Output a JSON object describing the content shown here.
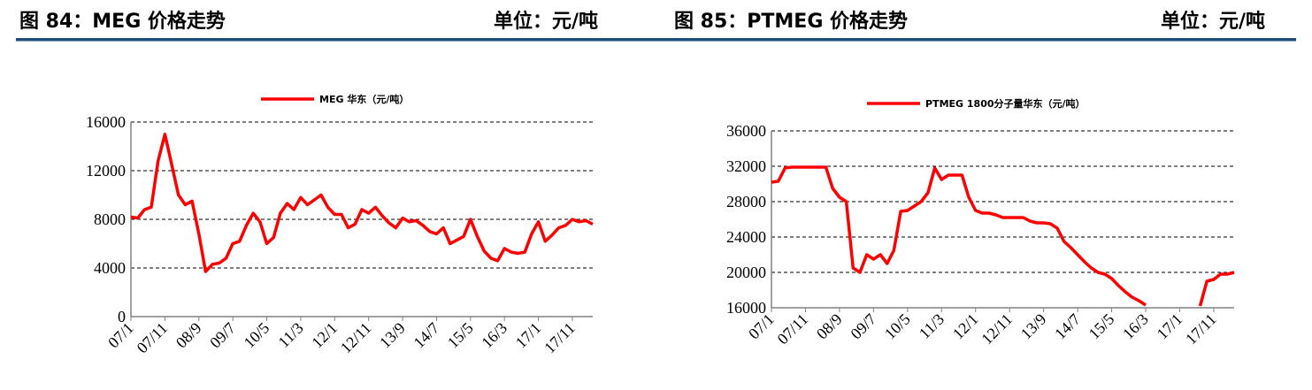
{
  "chart_data": [
    {
      "type": "line",
      "title": "图 84：MEG 价格走势",
      "unit": "单位：元/吨",
      "categories": [
        "07/1",
        null,
        null,
        null,
        null,
        "07/11",
        null,
        null,
        null,
        null,
        "08/9",
        null,
        null,
        null,
        null,
        "09/7",
        null,
        null,
        null,
        null,
        "10/5",
        null,
        null,
        null,
        null,
        "11/3",
        null,
        null,
        null,
        null,
        "12/1",
        null,
        null,
        null,
        null,
        "12/11",
        null,
        null,
        null,
        null,
        "13/9",
        null,
        null,
        null,
        null,
        "14/7",
        null,
        null,
        null,
        null,
        "15/5",
        null,
        null,
        null,
        null,
        "16/3",
        null,
        null,
        null,
        null,
        "17/1",
        null,
        null,
        null,
        null,
        "17/11",
        null,
        null,
        null
      ],
      "series": [
        {
          "name": "MEG 华东（元/吨）",
          "color": "#ff0000",
          "values": [
            8200,
            8100,
            8800,
            9000,
            12800,
            15000,
            12500,
            10000,
            9200,
            9500,
            6800,
            3700,
            4300,
            4400,
            4800,
            6000,
            6200,
            7500,
            8500,
            7800,
            6000,
            6500,
            8500,
            9300,
            8800,
            9800,
            9200,
            9600,
            10000,
            9000,
            8400,
            8400,
            7300,
            7600,
            8800,
            8500,
            9000,
            8300,
            7700,
            7300,
            8100,
            7800,
            7900,
            7500,
            7000,
            6800,
            7300,
            6000,
            6300,
            6600,
            8000,
            6600,
            5400,
            4800,
            4600,
            5600,
            5300,
            5200,
            5300,
            6800,
            7800,
            6200,
            6700,
            7300,
            7500,
            8000,
            7800,
            7900,
            7600
          ]
        }
      ],
      "ylim": [
        0,
        16000
      ],
      "yticks": [
        0,
        4000,
        8000,
        12000,
        16000
      ],
      "grid": true
    },
    {
      "type": "line",
      "title": "图 85：PTMEG 价格走势",
      "unit": "单位：元/吨",
      "categories": [
        "07/1",
        null,
        null,
        null,
        null,
        "07/11",
        null,
        null,
        null,
        null,
        "08/9",
        null,
        null,
        null,
        null,
        "09/7",
        null,
        null,
        null,
        null,
        "10/5",
        null,
        null,
        null,
        null,
        "11/3",
        null,
        null,
        null,
        null,
        "12/1",
        null,
        null,
        null,
        null,
        "12/11",
        null,
        null,
        null,
        null,
        "13/9",
        null,
        null,
        null,
        null,
        "14/7",
        null,
        null,
        null,
        null,
        "15/5",
        null,
        null,
        null,
        null,
        "16/3",
        null,
        null,
        null,
        null,
        "17/1",
        null,
        null,
        null,
        null,
        "17/11",
        null,
        null,
        null
      ],
      "series": [
        {
          "name": "PTMEG 1800分子量华东（元/吨）",
          "color": "#ff0000",
          "values": [
            30200,
            30300,
            31800,
            31900,
            31900,
            31900,
            31900,
            31900,
            31900,
            29500,
            28500,
            28000,
            20500,
            20000,
            22000,
            21500,
            22000,
            21000,
            22500,
            26900,
            27000,
            27500,
            28000,
            29000,
            31800,
            30500,
            31000,
            31000,
            31000,
            28500,
            27000,
            26700,
            26700,
            26500,
            26200,
            26200,
            26200,
            26200,
            25800,
            25600,
            25600,
            25500,
            25000,
            23500,
            22800,
            22000,
            21200,
            20500,
            20000,
            19800,
            19300,
            18500,
            17800,
            17200,
            16800,
            16300,
            null,
            null,
            null,
            null,
            null,
            null,
            null,
            16200,
            19000,
            19200,
            19800,
            19800,
            20000
          ]
        }
      ],
      "ylim": [
        16000,
        36000
      ],
      "yticks": [
        16000,
        20000,
        24000,
        28000,
        32000,
        36000
      ],
      "grid": true
    }
  ]
}
